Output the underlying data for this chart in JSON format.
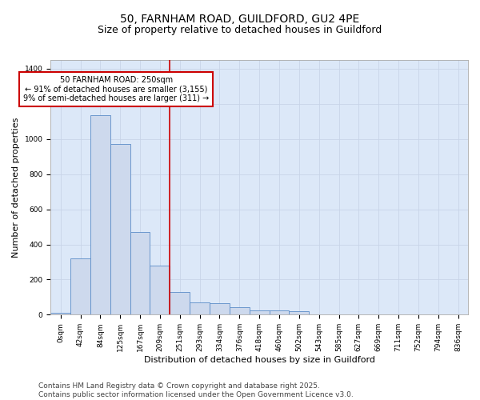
{
  "title_line1": "50, FARNHAM ROAD, GUILDFORD, GU2 4PE",
  "title_line2": "Size of property relative to detached houses in Guildford",
  "xlabel": "Distribution of detached houses by size in Guildford",
  "ylabel": "Number of detached properties",
  "bar_color": "#cdd9ed",
  "bar_edge_color": "#5b8cc8",
  "categories": [
    "0sqm",
    "42sqm",
    "84sqm",
    "125sqm",
    "167sqm",
    "209sqm",
    "251sqm",
    "293sqm",
    "334sqm",
    "376sqm",
    "418sqm",
    "460sqm",
    "502sqm",
    "543sqm",
    "585sqm",
    "627sqm",
    "669sqm",
    "711sqm",
    "752sqm",
    "794sqm",
    "836sqm"
  ],
  "values": [
    10,
    320,
    1135,
    970,
    470,
    280,
    130,
    68,
    65,
    42,
    25,
    25,
    20,
    0,
    0,
    0,
    0,
    0,
    0,
    0,
    0
  ],
  "vline_index": 6,
  "marker_label_title": "50 FARNHAM ROAD: 250sqm",
  "marker_label_line2": "← 91% of detached houses are smaller (3,155)",
  "marker_label_line3": "9% of semi-detached houses are larger (311) →",
  "annotation_box_facecolor": "#ffffff",
  "annotation_box_edgecolor": "#cc0000",
  "vline_color": "#cc0000",
  "ylim": [
    0,
    1450
  ],
  "yticks": [
    0,
    200,
    400,
    600,
    800,
    1000,
    1200,
    1400
  ],
  "grid_color": "#c8d4e8",
  "plot_bg_color": "#dce8f8",
  "fig_bg_color": "#ffffff",
  "footer_line1": "Contains HM Land Registry data © Crown copyright and database right 2025.",
  "footer_line2": "Contains public sector information licensed under the Open Government Licence v3.0.",
  "title_fontsize": 10,
  "subtitle_fontsize": 9,
  "tick_fontsize": 6.5,
  "ylabel_fontsize": 8,
  "xlabel_fontsize": 8,
  "annotation_fontsize": 7,
  "footer_fontsize": 6.5
}
